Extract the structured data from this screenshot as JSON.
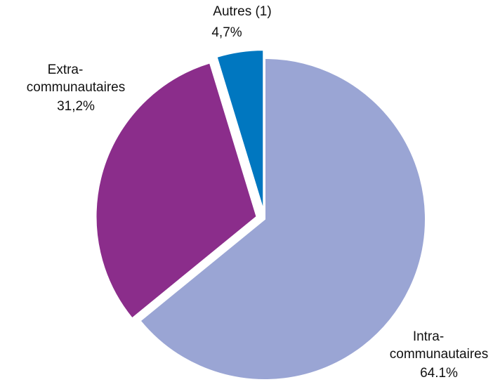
{
  "chart_data": {
    "type": "pie",
    "categories": [
      "Intra-communautaires",
      "Extra-communautaires",
      "Autres (1)"
    ],
    "values": [
      64.1,
      31.2,
      4.7
    ],
    "value_labels": [
      "64.1%",
      "31,2%",
      "4,7%"
    ],
    "colors": [
      "#9aa5d4",
      "#8b2d8b",
      "#0077c0"
    ]
  }
}
